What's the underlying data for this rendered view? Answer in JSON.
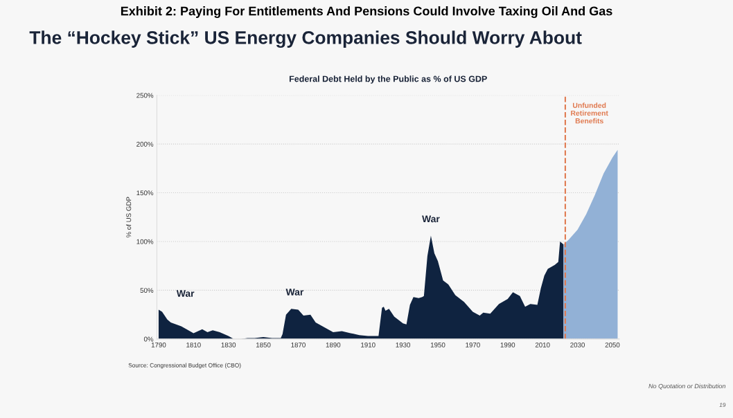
{
  "chart_data": {
    "type": "area",
    "title": "The “Hockey Stick” US Energy Companies Should Worry About",
    "subtitle": "Federal Debt Held by the Public as % of US GDP",
    "ylabel": "% of US GDP",
    "xlim": [
      1789,
      2054
    ],
    "xticks": [
      1790,
      1810,
      1830,
      1850,
      1870,
      1890,
      1910,
      1930,
      1950,
      1970,
      1990,
      2010,
      2030,
      2050
    ],
    "ylim": [
      0,
      250
    ],
    "yticks": [
      {
        "value": 0,
        "label": "0%"
      },
      {
        "value": 50,
        "label": "50%"
      },
      {
        "value": 100,
        "label": "100%"
      },
      {
        "value": 150,
        "label": "150%"
      },
      {
        "value": 200,
        "label": "200%"
      },
      {
        "value": 250,
        "label": "250%"
      }
    ],
    "grid": "y",
    "series": [
      {
        "color": "#0f2340",
        "x": [
          1790,
          1792,
          1795,
          1797,
          1800,
          1803,
          1806,
          1810,
          1815,
          1818,
          1821,
          1825,
          1830,
          1833,
          1837,
          1841,
          1845,
          1850,
          1855,
          1860,
          1861,
          1863,
          1866,
          1870,
          1873,
          1877,
          1880,
          1885,
          1890,
          1895,
          1900,
          1905,
          1910,
          1916,
          1918,
          1919,
          1920,
          1922,
          1925,
          1930,
          1932,
          1934,
          1936,
          1939,
          1941,
          1942,
          1944,
          1946,
          1948,
          1950,
          1953,
          1956,
          1960,
          1965,
          1970,
          1974,
          1976,
          1980,
          1985,
          1990,
          1993,
          1997,
          2000,
          2003,
          2007,
          2009,
          2011,
          2013,
          2017,
          2019,
          2020,
          2022
        ],
        "values": [
          30,
          28,
          20,
          17,
          15,
          13,
          10,
          6,
          10,
          7,
          9,
          7,
          3,
          0,
          0,
          1,
          1,
          2,
          1,
          1,
          5,
          25,
          31,
          30,
          24,
          25,
          17,
          12,
          7,
          8,
          6,
          4,
          3,
          3,
          32,
          33,
          29,
          31,
          23,
          16,
          15,
          35,
          43,
          42,
          43,
          44,
          85,
          106,
          88,
          80,
          60,
          56,
          45,
          38,
          28,
          24,
          27,
          26,
          36,
          41,
          48,
          44,
          33,
          36,
          35,
          52,
          65,
          72,
          76,
          79,
          100,
          97
        ]
      },
      {
        "color": "#92b1d6",
        "x": [
          2022,
          2025,
          2030,
          2035,
          2040,
          2045,
          2050,
          2053
        ],
        "values": [
          97,
          102,
          112,
          128,
          148,
          170,
          186,
          194
        ]
      }
    ],
    "ref_lines": [
      {
        "axis": "x",
        "value": 2023,
        "label": "Unfunded\nRetirement\nBenefits",
        "color": "#e07a50",
        "line_style": "dashed"
      }
    ],
    "annotations": [
      "Exhibit 2: Paying For Entitlements And Pensions Could Involve Taxing Oil And Gas",
      "Source: Congressional Budget Office (CBO)",
      "No Quotation or Distribution",
      "19",
      "War",
      {
        "text": "War",
        "x": 1868,
        "y": 31
      },
      {
        "text": "War",
        "x": 1946,
        "y": 106
      }
    ]
  }
}
